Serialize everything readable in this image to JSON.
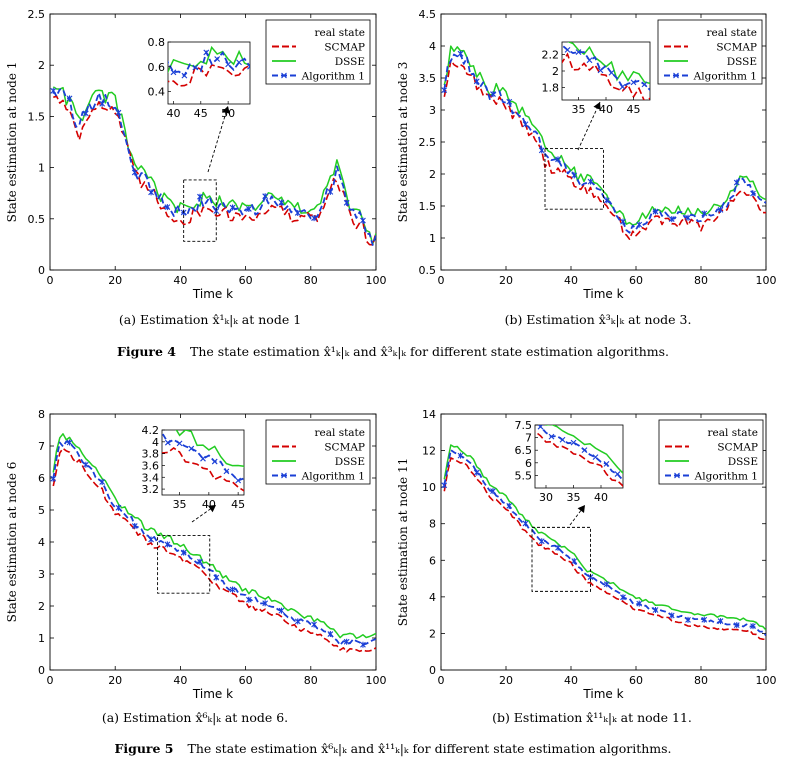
{
  "page": {
    "background": "#ffffff"
  },
  "colors": {
    "real_state": "#000000",
    "SCMAP": "#d40000",
    "DSSE": "#22cc22",
    "Algorithm 1": "#1a3fd6"
  },
  "chart_data": [
    {
      "type": "line",
      "xlabel": "Time k",
      "ylabel": "State estimation at node 1",
      "xlim": [
        0,
        100
      ],
      "ylim": [
        0,
        2.5
      ],
      "xticks": [
        0,
        20,
        40,
        60,
        80,
        100
      ],
      "yticks": [
        0,
        0.5,
        1,
        1.5,
        2,
        2.5
      ],
      "legend": {
        "placement": "top-right",
        "entries": [
          "real state",
          "SCMAP",
          "DSSE",
          "Algorithm 1"
        ]
      },
      "anchors": [
        [
          1,
          1.75
        ],
        [
          3,
          1.7
        ],
        [
          6,
          1.58
        ],
        [
          9,
          1.35
        ],
        [
          11,
          1.55
        ],
        [
          14,
          1.62
        ],
        [
          17,
          1.62
        ],
        [
          20,
          1.58
        ],
        [
          23,
          1.28
        ],
        [
          26,
          0.95
        ],
        [
          29,
          0.85
        ],
        [
          32,
          0.75
        ],
        [
          35,
          0.62
        ],
        [
          38,
          0.55
        ],
        [
          42,
          0.52
        ],
        [
          46,
          0.62
        ],
        [
          50,
          0.62
        ],
        [
          54,
          0.58
        ],
        [
          58,
          0.55
        ],
        [
          62,
          0.55
        ],
        [
          66,
          0.63
        ],
        [
          70,
          0.62
        ],
        [
          74,
          0.55
        ],
        [
          78,
          0.52
        ],
        [
          82,
          0.55
        ],
        [
          85,
          0.72
        ],
        [
          88,
          0.95
        ],
        [
          92,
          0.55
        ],
        [
          96,
          0.45
        ],
        [
          99,
          0.22
        ],
        [
          100,
          0.35
        ]
      ],
      "series_offsets": {
        "real state": 0.0,
        "SCMAP": -0.03,
        "DSSE": 0.07,
        "Algorithm 1": 0.03
      },
      "noise": 0.06,
      "inset": {
        "xlim": [
          39,
          54
        ],
        "ylim": [
          0.3,
          0.8
        ],
        "xticks": [
          40,
          45,
          50
        ],
        "yticks": [
          0.4,
          0.6,
          0.8
        ],
        "zoom_box": {
          "x": [
            41,
            51
          ],
          "y": [
            0.28,
            0.88
          ]
        }
      },
      "subcaption": "(a) Estimation x̂¹ₖ|ₖ at node 1"
    },
    {
      "type": "line",
      "xlabel": "Time k",
      "ylabel": "State estimation at node 3",
      "xlim": [
        0,
        100
      ],
      "ylim": [
        0.5,
        4.5
      ],
      "xticks": [
        0,
        20,
        40,
        60,
        80,
        100
      ],
      "yticks": [
        0.5,
        1,
        1.5,
        2,
        2.5,
        3,
        3.5,
        4,
        4.5
      ],
      "legend": {
        "placement": "top-right",
        "entries": [
          "real state",
          "SCMAP",
          "DSSE",
          "Algorithm 1"
        ]
      },
      "anchors": [
        [
          1,
          3.3
        ],
        [
          3,
          3.8
        ],
        [
          6,
          3.85
        ],
        [
          9,
          3.6
        ],
        [
          12,
          3.4
        ],
        [
          15,
          3.2
        ],
        [
          18,
          3.2
        ],
        [
          21,
          3.05
        ],
        [
          24,
          2.9
        ],
        [
          27,
          2.75
        ],
        [
          30,
          2.55
        ],
        [
          32,
          2.25
        ],
        [
          34,
          2.15
        ],
        [
          37,
          2.1
        ],
        [
          40,
          2.0
        ],
        [
          42,
          1.85
        ],
        [
          45,
          1.8
        ],
        [
          48,
          1.72
        ],
        [
          52,
          1.45
        ],
        [
          55,
          1.3
        ],
        [
          58,
          1.05
        ],
        [
          60,
          1.15
        ],
        [
          64,
          1.3
        ],
        [
          68,
          1.35
        ],
        [
          72,
          1.3
        ],
        [
          76,
          1.3
        ],
        [
          80,
          1.25
        ],
        [
          84,
          1.35
        ],
        [
          88,
          1.5
        ],
        [
          90,
          1.65
        ],
        [
          92,
          1.85
        ],
        [
          95,
          1.75
        ],
        [
          98,
          1.55
        ],
        [
          100,
          1.5
        ]
      ],
      "series_offsets": {
        "real state": 0.0,
        "SCMAP": -0.06,
        "DSSE": 0.12,
        "Algorithm 1": 0.04
      },
      "noise": 0.07,
      "inset": {
        "xlim": [
          32,
          48
        ],
        "ylim": [
          1.65,
          2.35
        ],
        "xticks": [
          35,
          40,
          45
        ],
        "yticks": [
          1.8,
          2,
          2.2
        ],
        "zoom_box": {
          "x": [
            32,
            50
          ],
          "y": [
            1.45,
            2.4
          ]
        }
      },
      "subcaption": "(b) Estimation x̂³ₖ|ₖ at node 3."
    },
    {
      "type": "line",
      "xlabel": "Time k",
      "ylabel": "State estimation at node 6",
      "xlim": [
        0,
        100
      ],
      "ylim": [
        0,
        8
      ],
      "xticks": [
        0,
        20,
        40,
        60,
        80,
        100
      ],
      "yticks": [
        0,
        1,
        2,
        3,
        4,
        5,
        6,
        7,
        8
      ],
      "legend": {
        "placement": "top-right",
        "entries": [
          "real state",
          "SCMAP",
          "DSSE",
          "Algorithm 1"
        ]
      },
      "anchors": [
        [
          1,
          5.9
        ],
        [
          3,
          7.0
        ],
        [
          6,
          6.9
        ],
        [
          10,
          6.5
        ],
        [
          15,
          5.9
        ],
        [
          20,
          5.0
        ],
        [
          25,
          4.6
        ],
        [
          30,
          4.1
        ],
        [
          35,
          3.9
        ],
        [
          40,
          3.6
        ],
        [
          45,
          3.3
        ],
        [
          50,
          2.9
        ],
        [
          55,
          2.5
        ],
        [
          60,
          2.2
        ],
        [
          65,
          2.0
        ],
        [
          70,
          1.8
        ],
        [
          75,
          1.5
        ],
        [
          80,
          1.3
        ],
        [
          85,
          1.1
        ],
        [
          89,
          0.7
        ],
        [
          92,
          0.8
        ],
        [
          96,
          0.75
        ],
        [
          100,
          0.8
        ]
      ],
      "series_offsets": {
        "real state": 0.0,
        "SCMAP": -0.12,
        "DSSE": 0.3,
        "Algorithm 1": 0.1
      },
      "noise": 0.08,
      "inset": {
        "xlim": [
          32,
          46
        ],
        "ylim": [
          3.1,
          4.2
        ],
        "xticks": [
          35,
          40,
          45
        ],
        "yticks": [
          3.2,
          3.4,
          3.6,
          3.8,
          4,
          4.2
        ],
        "zoom_box": {
          "x": [
            33,
            49
          ],
          "y": [
            2.4,
            4.2
          ]
        }
      },
      "subcaption": "(a) Estimation x̂⁶ₖ|ₖ at node 6."
    },
    {
      "type": "line",
      "xlabel": "Time k",
      "ylabel": "State estimation at node 11",
      "xlim": [
        0,
        100
      ],
      "ylim": [
        0,
        14
      ],
      "xticks": [
        0,
        20,
        40,
        60,
        80,
        100
      ],
      "yticks": [
        0,
        2,
        4,
        6,
        8,
        10,
        12,
        14
      ],
      "legend": {
        "placement": "top-right",
        "entries": [
          "real state",
          "SCMAP",
          "DSSE",
          "Algorithm 1"
        ]
      },
      "anchors": [
        [
          1,
          10.0
        ],
        [
          3,
          11.8
        ],
        [
          6,
          11.6
        ],
        [
          10,
          11.0
        ],
        [
          15,
          9.7
        ],
        [
          20,
          9.0
        ],
        [
          25,
          8.0
        ],
        [
          30,
          7.1
        ],
        [
          35,
          6.6
        ],
        [
          40,
          6.0
        ],
        [
          45,
          5.0
        ],
        [
          50,
          4.6
        ],
        [
          55,
          4.0
        ],
        [
          60,
          3.5
        ],
        [
          65,
          3.2
        ],
        [
          70,
          3.0
        ],
        [
          75,
          2.7
        ],
        [
          80,
          2.6
        ],
        [
          85,
          2.5
        ],
        [
          90,
          2.4
        ],
        [
          95,
          2.3
        ],
        [
          100,
          1.8
        ]
      ],
      "series_offsets": {
        "real state": 0.0,
        "SCMAP": -0.2,
        "DSSE": 0.45,
        "Algorithm 1": 0.12
      },
      "noise": 0.08,
      "inset": {
        "xlim": [
          28,
          44
        ],
        "ylim": [
          5.0,
          7.5
        ],
        "xticks": [
          30,
          35,
          40
        ],
        "yticks": [
          5.5,
          6,
          6.5,
          7,
          7.5
        ],
        "zoom_box": {
          "x": [
            28,
            46
          ],
          "y": [
            4.3,
            7.8
          ]
        }
      },
      "subcaption": "(b) Estimation x̂¹¹ₖ|ₖ at node 11."
    }
  ],
  "figure4_caption": {
    "label": "Figure 4",
    "text": "The state estimation x̂¹ₖ|ₖ and x̂³ₖ|ₖ for different state estimation algorithms."
  },
  "figure5_caption": {
    "label": "Figure 5",
    "text": "The state estimation x̂⁶ₖ|ₖ and x̂¹¹ₖ|ₖ for different state estimation algorithms."
  }
}
